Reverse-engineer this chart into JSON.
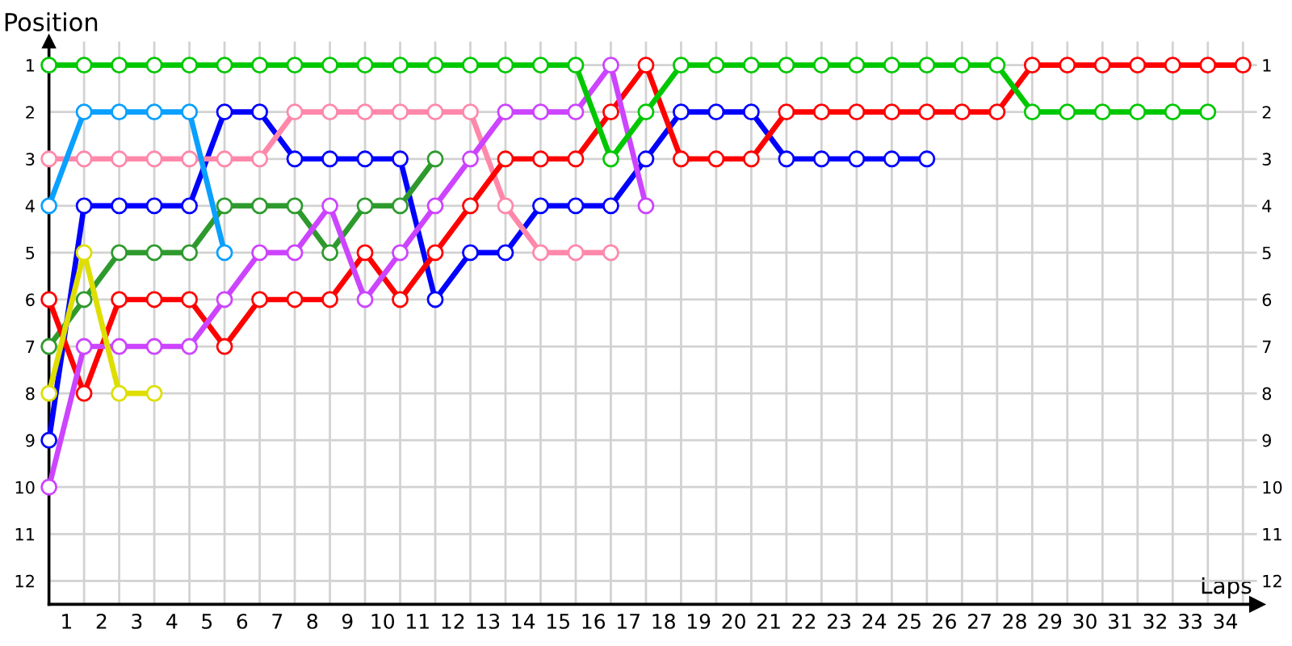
{
  "chart_data": {
    "type": "line",
    "xlabel": "Laps",
    "ylabel": "Position",
    "xlim": [
      0,
      34.4
    ],
    "ylim": [
      12.5,
      0.5
    ],
    "y2lim": [
      12.5,
      0.5
    ],
    "xticks": [
      {
        "value": 0,
        "label": null
      },
      {
        "value": 0.5,
        "label": "1"
      },
      {
        "value": 1,
        "label": null
      },
      {
        "value": 1.5,
        "label": "2"
      },
      {
        "value": 2,
        "label": null
      },
      {
        "value": 2.5,
        "label": "3"
      },
      {
        "value": 3,
        "label": null
      },
      {
        "value": 3.5,
        "label": "4"
      },
      {
        "value": 4,
        "label": null
      },
      {
        "value": 4.5,
        "label": "5"
      },
      {
        "value": 5,
        "label": null
      },
      {
        "value": 5.5,
        "label": "6"
      },
      {
        "value": 6,
        "label": null
      },
      {
        "value": 6.5,
        "label": "7"
      },
      {
        "value": 7,
        "label": null
      },
      {
        "value": 7.5,
        "label": "8"
      },
      {
        "value": 8,
        "label": null
      },
      {
        "value": 8.5,
        "label": "9"
      },
      {
        "value": 9,
        "label": null
      },
      {
        "value": 9.5,
        "label": "10"
      },
      {
        "value": 10,
        "label": null
      },
      {
        "value": 10.5,
        "label": "11"
      },
      {
        "value": 11,
        "label": null
      },
      {
        "value": 11.5,
        "label": "12"
      },
      {
        "value": 12,
        "label": null
      },
      {
        "value": 12.5,
        "label": "13"
      },
      {
        "value": 13,
        "label": null
      },
      {
        "value": 13.5,
        "label": "14"
      },
      {
        "value": 14,
        "label": null
      },
      {
        "value": 14.5,
        "label": "15"
      },
      {
        "value": 15,
        "label": null
      },
      {
        "value": 15.5,
        "label": "16"
      },
      {
        "value": 16,
        "label": null
      },
      {
        "value": 16.5,
        "label": "17"
      },
      {
        "value": 17,
        "label": null
      },
      {
        "value": 17.5,
        "label": "18"
      },
      {
        "value": 18,
        "label": null
      },
      {
        "value": 18.5,
        "label": "19"
      },
      {
        "value": 19,
        "label": null
      },
      {
        "value": 19.5,
        "label": "20"
      },
      {
        "value": 20,
        "label": null
      },
      {
        "value": 20.5,
        "label": "21"
      },
      {
        "value": 21,
        "label": null
      },
      {
        "value": 21.5,
        "label": "22"
      },
      {
        "value": 22,
        "label": null
      },
      {
        "value": 22.5,
        "label": "23"
      },
      {
        "value": 23,
        "label": null
      },
      {
        "value": 23.5,
        "label": "24"
      },
      {
        "value": 24,
        "label": null
      },
      {
        "value": 24.5,
        "label": "25"
      },
      {
        "value": 25,
        "label": null
      },
      {
        "value": 25.5,
        "label": "26"
      },
      {
        "value": 26,
        "label": null
      },
      {
        "value": 26.5,
        "label": "27"
      },
      {
        "value": 27,
        "label": null
      },
      {
        "value": 27.5,
        "label": "28"
      },
      {
        "value": 28,
        "label": null
      },
      {
        "value": 28.5,
        "label": "29"
      },
      {
        "value": 29,
        "label": null
      },
      {
        "value": 29.5,
        "label": "30"
      },
      {
        "value": 30,
        "label": null
      },
      {
        "value": 30.5,
        "label": "31"
      },
      {
        "value": 31,
        "label": null
      },
      {
        "value": 31.5,
        "label": "32"
      },
      {
        "value": 32,
        "label": null
      },
      {
        "value": 32.5,
        "label": "33"
      },
      {
        "value": 33,
        "label": null
      },
      {
        "value": 33.5,
        "label": "34"
      },
      {
        "value": 34,
        "label": null
      }
    ],
    "yticks": [
      1,
      2,
      3,
      4,
      5,
      6,
      7,
      8,
      9,
      10,
      11,
      12
    ],
    "y2ticks": [
      1,
      2,
      3,
      4,
      5,
      6,
      7,
      8,
      9,
      10,
      11,
      12
    ],
    "grid": true,
    "marker": "circle",
    "line_style": "solid",
    "series": [
      {
        "color": "#0000ff",
        "x": [
          0,
          1,
          2,
          3,
          4,
          5,
          6,
          7,
          8,
          9,
          10,
          11,
          12,
          13,
          14,
          15,
          16,
          17,
          18,
          19,
          20,
          21,
          22,
          23,
          24,
          25
        ],
        "values": [
          9,
          4,
          4,
          4,
          4,
          2,
          2,
          3,
          3,
          3,
          3,
          6,
          5,
          5,
          4,
          4,
          4,
          3,
          2,
          2,
          2,
          3,
          3,
          3,
          3,
          3
        ]
      },
      {
        "color": "#ff88aa",
        "x": [
          0,
          1,
          2,
          3,
          4,
          5,
          6,
          7,
          8,
          9,
          10,
          11,
          12,
          13,
          14,
          15,
          16
        ],
        "values": [
          3,
          3,
          3,
          3,
          3,
          3,
          3,
          2,
          2,
          2,
          2,
          2,
          2,
          4,
          5,
          5,
          5
        ]
      },
      {
        "color": "#2e9a2e",
        "x": [
          0,
          1,
          2,
          3,
          4,
          5,
          6,
          7,
          8,
          9,
          10,
          11
        ],
        "values": [
          7,
          6,
          5,
          5,
          5,
          4,
          4,
          4,
          5,
          4,
          4,
          3
        ]
      },
      {
        "color": "#ff0000",
        "x": [
          0,
          1,
          2,
          3,
          4,
          5,
          6,
          7,
          8,
          9,
          10,
          11,
          12,
          13,
          14,
          15,
          16,
          17,
          18,
          19,
          20,
          21,
          22,
          23,
          24,
          25,
          26,
          27,
          28,
          29,
          30,
          31,
          32,
          33,
          34
        ],
        "values": [
          6,
          8,
          6,
          6,
          6,
          7,
          6,
          6,
          6,
          5,
          6,
          5,
          4,
          3,
          3,
          3,
          2,
          1,
          3,
          3,
          3,
          2,
          2,
          2,
          2,
          2,
          2,
          2,
          1,
          1,
          1,
          1,
          1,
          1,
          1
        ]
      },
      {
        "color": "#cc44ff",
        "x": [
          0,
          1,
          2,
          3,
          4,
          5,
          6,
          7,
          8,
          9,
          10,
          11,
          12,
          13,
          14,
          15,
          16,
          17
        ],
        "values": [
          10,
          7,
          7,
          7,
          7,
          6,
          5,
          5,
          4,
          6,
          5,
          4,
          3,
          2,
          2,
          2,
          1,
          4
        ]
      },
      {
        "color": "#0aa0ff",
        "x": [
          0,
          1,
          2,
          3,
          4,
          5
        ],
        "values": [
          4,
          2,
          2,
          2,
          2,
          5
        ]
      },
      {
        "color": "#dede00",
        "x": [
          0,
          1,
          2,
          3
        ],
        "values": [
          8,
          5,
          8,
          8
        ]
      },
      {
        "color": "#00c800",
        "x": [
          0,
          1,
          2,
          3,
          4,
          5,
          6,
          7,
          8,
          9,
          10,
          11,
          12,
          13,
          14,
          15,
          16,
          17,
          18,
          19,
          20,
          21,
          22,
          23,
          24,
          25,
          26,
          27,
          28,
          29,
          30,
          31,
          32,
          33
        ],
        "values": [
          1,
          1,
          1,
          1,
          1,
          1,
          1,
          1,
          1,
          1,
          1,
          1,
          1,
          1,
          1,
          1,
          3,
          2,
          1,
          1,
          1,
          1,
          1,
          1,
          1,
          1,
          1,
          1,
          2,
          2,
          2,
          2,
          2,
          2
        ]
      }
    ]
  }
}
